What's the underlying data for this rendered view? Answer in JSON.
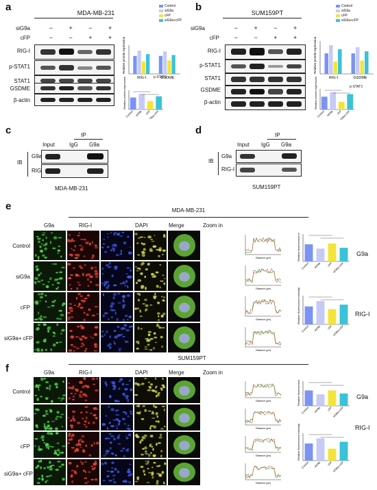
{
  "panels": {
    "a": "a",
    "b": "b",
    "c": "c",
    "d": "d",
    "e": "e",
    "f": "f"
  },
  "a": {
    "title": "MDA-MB-231",
    "treat_rows": [
      {
        "label": "siG9a",
        "signs": [
          "−",
          "+",
          "−",
          "+"
        ]
      },
      {
        "label": "cFP",
        "signs": [
          "−",
          "−",
          "+",
          "+"
        ]
      }
    ],
    "bands": [
      "RIG-I",
      "p-STAT1",
      "STAT1",
      "GSDME",
      "β-actin"
    ],
    "legend": [
      "Control",
      "siG9a",
      "cFP",
      "siG9a+cFP"
    ],
    "ylabel": "Relative protein expression",
    "bar_groups": [
      "RIG-I",
      "GSDME"
    ],
    "pstat_label": "p-STAT1"
  },
  "b": {
    "title": "SUM159PT",
    "treat_rows": [
      {
        "label": "siG9a",
        "signs": [
          "−",
          "+",
          "−",
          "+"
        ]
      },
      {
        "label": "cFP",
        "signs": [
          "−",
          "−",
          "+",
          "+"
        ]
      }
    ],
    "bands": [
      "RIG-I",
      "p-STAT1",
      "STAT1",
      "GSDME",
      "β-actin"
    ],
    "legend": [
      "Control",
      "siG9a",
      "cFP",
      "siG9a+cFP"
    ],
    "ylabel": "Relative protein expression",
    "bar_groups": [
      "RIG-I",
      "GSDME"
    ],
    "pstat_label": "p-STAT1"
  },
  "c": {
    "ib": "IB",
    "ip": "IP",
    "cols": [
      "Input",
      "IgG",
      "G9a"
    ],
    "rows": [
      "G9a",
      "RIG-I"
    ],
    "cell_line": "MDA-MB-231"
  },
  "d": {
    "ib": "IB",
    "ip": "IP",
    "cols": [
      "Input",
      "IgG",
      "G9a"
    ],
    "rows": [
      "G9a",
      "RIG-I"
    ],
    "cell_line": "SUM159PT"
  },
  "e": {
    "title": "MDA-MB-231",
    "cols": [
      "G9a",
      "RIG-I",
      "DAPI",
      "Merge",
      "Zoom in"
    ],
    "rows": [
      "Control",
      "siG9a",
      "cFP",
      "siG9a+ cFP"
    ],
    "chart_g9a": "G9a",
    "chart_rig": "RIG-I",
    "ylabel": "Relative fluorescence intensity",
    "xlabel": "Distance (μm)",
    "ylabel_line": "Intensity (a.u.)",
    "line_legend": [
      "G9a",
      "RIG-I"
    ],
    "xcats": [
      "Control",
      "siG9a",
      "cFP",
      "siG9a+cFP"
    ]
  },
  "f": {
    "title": "SUM159PT",
    "cols": [
      "G9a",
      "RIG-I",
      "DAPI",
      "Merge",
      "Zoom in"
    ],
    "rows": [
      "Control",
      "siG9a",
      "cFP",
      "siG9a+ cFP"
    ],
    "chart_g9a": "G9a",
    "chart_rig": "RIG-I",
    "ylabel": "Relative fluorescence intensity",
    "xlabel": "Distance (μm)",
    "ylabel_line": "Intensity (a.u.)",
    "line_legend": [
      "G9a",
      "RIG-I"
    ],
    "xcats": [
      "Control",
      "siG9a",
      "cFP",
      "siG9a+cFP"
    ]
  },
  "colors": {
    "control": "#7b93f2",
    "siG9a": "#c5cbf4",
    "cFP": "#f3e43a",
    "siG9a_cFP": "#3bc2d6",
    "g9a_line": "#2e9e3a",
    "rig_line": "#d0583a"
  },
  "chart_data": [
    {
      "type": "bar",
      "panel": "a-top",
      "categories": [
        "RIG-I",
        "GSDME"
      ],
      "series": [
        {
          "name": "Control",
          "values": [
            1.0,
            1.0
          ]
        },
        {
          "name": "siG9a",
          "values": [
            1.3,
            1.25
          ]
        },
        {
          "name": "cFP",
          "values": [
            0.7,
            0.75
          ]
        },
        {
          "name": "siG9a+cFP",
          "values": [
            1.1,
            1.05
          ]
        }
      ]
    },
    {
      "type": "bar",
      "panel": "a-bottom",
      "categories": [
        "Control",
        "siG9a",
        "cFP",
        "siG9a+cFP"
      ],
      "values": [
        1.0,
        1.3,
        0.7,
        1.1
      ]
    },
    {
      "type": "bar",
      "panel": "b-top",
      "categories": [
        "RIG-I",
        "GSDME"
      ],
      "series": [
        {
          "name": "Control",
          "values": [
            1.0,
            1.0
          ]
        },
        {
          "name": "siG9a",
          "values": [
            1.4,
            1.3
          ]
        },
        {
          "name": "cFP",
          "values": [
            0.6,
            0.65
          ]
        },
        {
          "name": "siG9a+cFP",
          "values": [
            1.2,
            1.1
          ]
        }
      ]
    },
    {
      "type": "bar",
      "panel": "b-bottom",
      "categories": [
        "Control",
        "siG9a",
        "cFP",
        "siG9a+cFP"
      ],
      "values": [
        1.0,
        1.35,
        0.6,
        1.2
      ]
    },
    {
      "type": "bar",
      "panel": "e-G9a",
      "categories": [
        "Control",
        "siG9a",
        "cFP",
        "siG9a+cFP"
      ],
      "values": [
        1.0,
        0.75,
        1.05,
        0.8
      ]
    },
    {
      "type": "bar",
      "panel": "e-RIG-I",
      "categories": [
        "Control",
        "siG9a",
        "cFP",
        "siG9a+cFP"
      ],
      "values": [
        1.0,
        1.3,
        0.85,
        1.1
      ]
    },
    {
      "type": "bar",
      "panel": "f-G9a",
      "categories": [
        "Control",
        "siG9a",
        "cFP",
        "siG9a+cFP"
      ],
      "values": [
        1.0,
        0.75,
        1.0,
        0.8
      ]
    },
    {
      "type": "bar",
      "panel": "f-RIG-I",
      "categories": [
        "Control",
        "siG9a",
        "cFP",
        "siG9a+cFP"
      ],
      "values": [
        1.0,
        1.3,
        0.7,
        1.1
      ]
    }
  ]
}
